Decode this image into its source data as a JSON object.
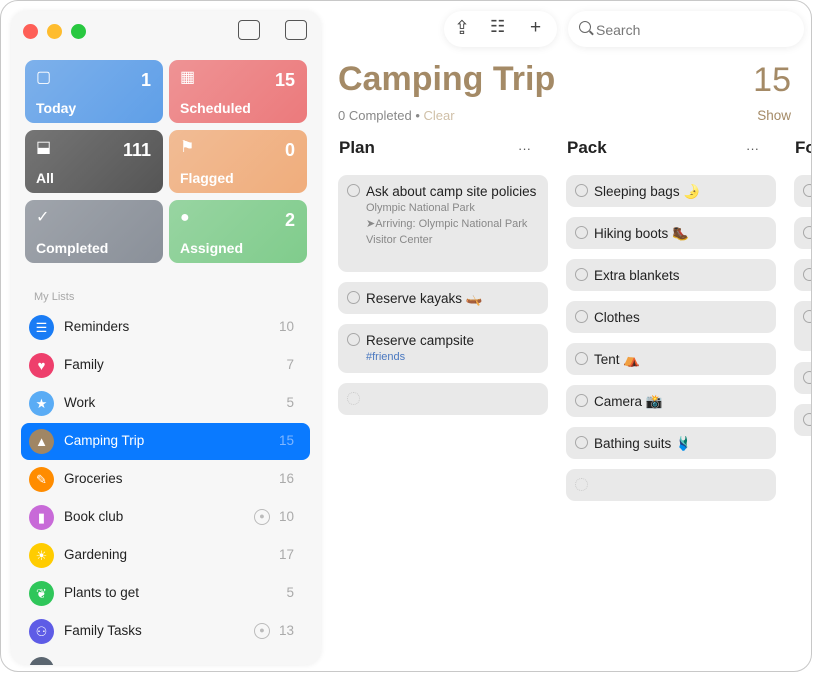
{
  "sidebar": {
    "smart_lists": [
      {
        "label": "Today",
        "count": "1",
        "icon": "calendar-today-icon",
        "glyph": "▢",
        "color": "#5f9fe8"
      },
      {
        "label": "Scheduled",
        "count": "15",
        "icon": "calendar-icon",
        "glyph": "▦",
        "color": "#ec7a7c"
      },
      {
        "label": "All",
        "count": "111",
        "icon": "tray-icon",
        "glyph": "⬓",
        "color": "#555555"
      },
      {
        "label": "Flagged",
        "count": "0",
        "icon": "flag-icon",
        "glyph": "⚑",
        "color": "#f0ad7c"
      },
      {
        "label": "Completed",
        "count": "",
        "icon": "checkmark-icon",
        "glyph": "✓",
        "color": "#8a9099"
      },
      {
        "label": "Assigned",
        "count": "2",
        "icon": "person-icon",
        "glyph": "●",
        "color": "#80cc8c"
      }
    ],
    "my_lists_label": "My Lists",
    "lists": [
      {
        "name": "Reminders",
        "count": "10",
        "icon": "list-bullet-icon",
        "glyph": "☰",
        "color": "#1a7cf5"
      },
      {
        "name": "Family",
        "count": "7",
        "icon": "heart-icon",
        "glyph": "♥",
        "color": "#ee3f6c"
      },
      {
        "name": "Work",
        "count": "5",
        "icon": "star-icon",
        "glyph": "★",
        "color": "#5aacf5"
      },
      {
        "name": "Camping Trip",
        "count": "15",
        "icon": "tent-icon",
        "glyph": "▲",
        "color": "#a08664",
        "selected": true
      },
      {
        "name": "Groceries",
        "count": "16",
        "icon": "carrot-icon",
        "glyph": "✎",
        "color": "#ff8c00"
      },
      {
        "name": "Book club",
        "count": "10",
        "icon": "bookmark-icon",
        "glyph": "▮",
        "color": "#c86ad8",
        "shared": true
      },
      {
        "name": "Gardening",
        "count": "17",
        "icon": "sun-icon",
        "glyph": "☀",
        "color": "#ffcc00"
      },
      {
        "name": "Plants to get",
        "count": "5",
        "icon": "leaf-icon",
        "glyph": "❦",
        "color": "#2fc65a"
      },
      {
        "name": "Family Tasks",
        "count": "13",
        "icon": "people-icon",
        "glyph": "⚇",
        "color": "#5e5ce6",
        "shared": true
      },
      {
        "name": "",
        "count": "",
        "icon": "list-icon",
        "glyph": "",
        "color": "#5b6670"
      }
    ]
  },
  "toolbar": {
    "search_placeholder": "Search"
  },
  "main": {
    "title": "Camping Trip",
    "count": "15",
    "completed": "0 Completed",
    "clear": "Clear",
    "show": "Show",
    "accent": "#a48a66",
    "columns": [
      {
        "name": "Plan",
        "items": [
          {
            "title": "Ask about camp site policies",
            "note": "Olympic National Park",
            "location": "Arriving: Olympic National Park Visitor Center"
          },
          {
            "title": "Reserve kayaks 🛶"
          },
          {
            "title": "Reserve campsite",
            "tag": "#friends"
          },
          {
            "title": "",
            "new": true
          }
        ]
      },
      {
        "name": "Pack",
        "items": [
          {
            "title": "Sleeping bags 🌛"
          },
          {
            "title": "Hiking boots 🥾"
          },
          {
            "title": "Extra blankets"
          },
          {
            "title": "Clothes"
          },
          {
            "title": "Tent ⛺"
          },
          {
            "title": "Camera 📸"
          },
          {
            "title": "Bathing suits 🩱"
          },
          {
            "title": "",
            "new": true
          }
        ]
      },
      {
        "name": "Fo"
      }
    ]
  }
}
